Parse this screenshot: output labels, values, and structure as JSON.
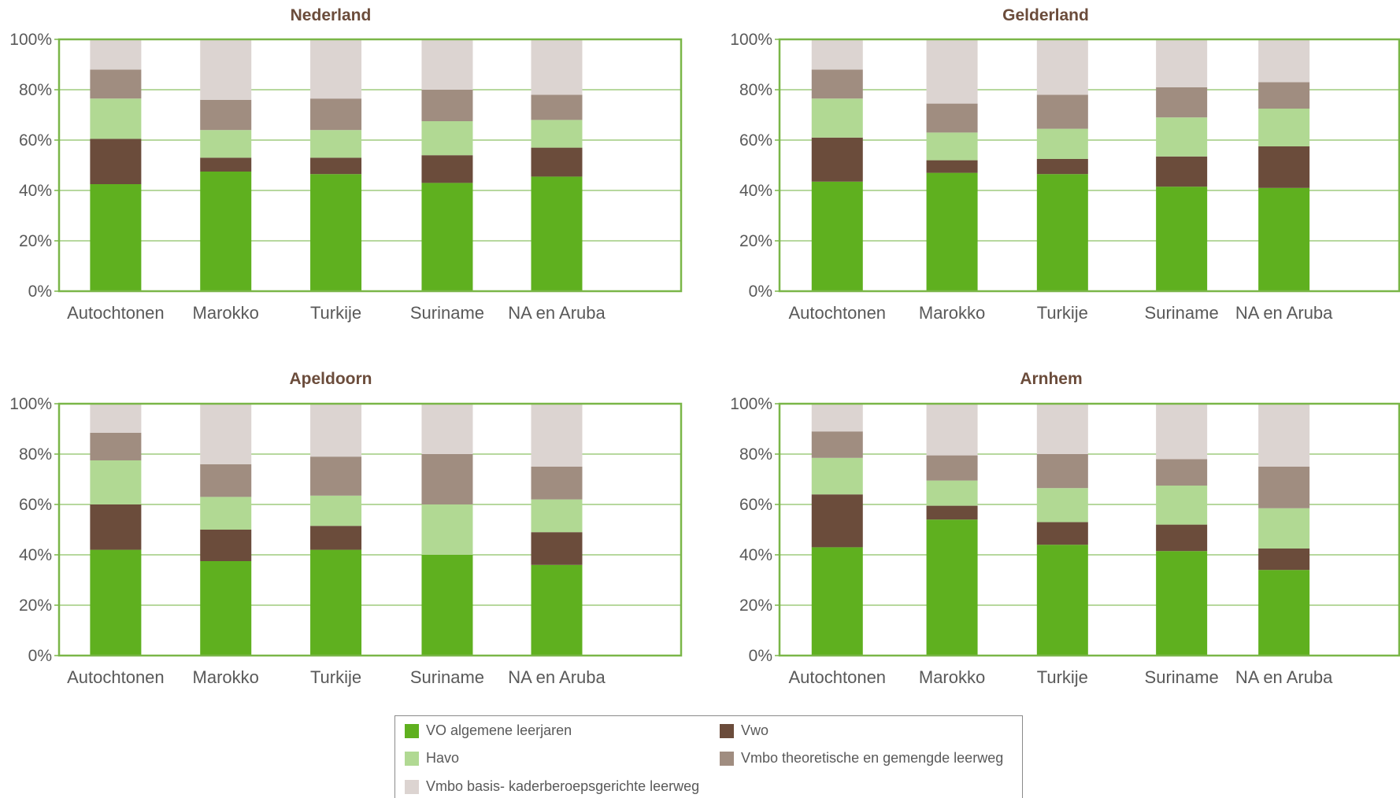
{
  "colors": {
    "vo": "#5fb01f",
    "vwo": "#6b4c3b",
    "havo": "#b1d993",
    "vmbo_tg": "#a08d80",
    "vmbo_bk": "#dcd4d1",
    "axis": "#7ab648",
    "grid": "#8cc063",
    "title": "#6b4c3b",
    "label": "#595959"
  },
  "legend": {
    "items": [
      {
        "key": "vo",
        "label": "VO algemene leerjaren"
      },
      {
        "key": "vwo",
        "label": "Vwo"
      },
      {
        "key": "havo",
        "label": "Havo"
      },
      {
        "key": "vmbo_tg",
        "label": "Vmbo theoretische en gemengde leerweg"
      },
      {
        "key": "vmbo_bk",
        "label": "Vmbo basis- kaderberoepsgerichte leerweg"
      }
    ]
  },
  "chart_data": [
    {
      "type": "bar",
      "stacked": true,
      "title": "Nederland",
      "categories": [
        "Autochtonen",
        "Marokko",
        "Turkije",
        "Suriname",
        "NA en Aruba"
      ],
      "yticks": [
        "0%",
        "20%",
        "40%",
        "60%",
        "80%",
        "100%"
      ],
      "ylim": [
        0,
        100
      ],
      "grid": true,
      "series": [
        {
          "name": "VO algemene leerjaren",
          "key": "vo",
          "values": [
            42.5,
            47.5,
            46.5,
            43,
            45.5
          ]
        },
        {
          "name": "Vwo",
          "key": "vwo",
          "values": [
            18,
            5.5,
            6.5,
            11,
            11.5
          ]
        },
        {
          "name": "Havo",
          "key": "havo",
          "values": [
            16,
            11,
            11,
            13.5,
            11
          ]
        },
        {
          "name": "Vmbo theoretische en gemengde leerweg",
          "key": "vmbo_tg",
          "values": [
            11.5,
            12,
            12.5,
            12.5,
            10
          ]
        },
        {
          "name": "Vmbo basis- kaderberoepsgerichte leerweg",
          "key": "vmbo_bk",
          "values": [
            12,
            24,
            23.5,
            20,
            22
          ]
        }
      ]
    },
    {
      "type": "bar",
      "stacked": true,
      "title": "Gelderland",
      "categories": [
        "Autochtonen",
        "Marokko",
        "Turkije",
        "Suriname",
        "NA en Aruba"
      ],
      "yticks": [
        "0%",
        "20%",
        "40%",
        "60%",
        "80%",
        "100%"
      ],
      "ylim": [
        0,
        100
      ],
      "grid": true,
      "series": [
        {
          "name": "VO algemene leerjaren",
          "key": "vo",
          "values": [
            43.5,
            47,
            46.5,
            41.5,
            41
          ]
        },
        {
          "name": "Vwo",
          "key": "vwo",
          "values": [
            17.5,
            5,
            6,
            12,
            16.5
          ]
        },
        {
          "name": "Havo",
          "key": "havo",
          "values": [
            15.5,
            11,
            12,
            15.5,
            15
          ]
        },
        {
          "name": "Vmbo theoretische en gemengde leerweg",
          "key": "vmbo_tg",
          "values": [
            11.5,
            11.5,
            13.5,
            12,
            10.5
          ]
        },
        {
          "name": "Vmbo basis- kaderberoepsgerichte leerweg",
          "key": "vmbo_bk",
          "values": [
            12,
            25.5,
            22,
            19,
            17
          ]
        }
      ]
    },
    {
      "type": "bar",
      "stacked": true,
      "title": "Apeldoorn",
      "categories": [
        "Autochtonen",
        "Marokko",
        "Turkije",
        "Suriname",
        "NA en Aruba"
      ],
      "yticks": [
        "0%",
        "20%",
        "40%",
        "60%",
        "80%",
        "100%"
      ],
      "ylim": [
        0,
        100
      ],
      "grid": true,
      "series": [
        {
          "name": "VO algemene leerjaren",
          "key": "vo",
          "values": [
            42,
            37.5,
            42,
            40,
            36
          ]
        },
        {
          "name": "Vwo",
          "key": "vwo",
          "values": [
            18,
            12.5,
            9.5,
            0,
            13
          ]
        },
        {
          "name": "Havo",
          "key": "havo",
          "values": [
            17.5,
            13,
            12,
            20,
            13
          ]
        },
        {
          "name": "Vmbo theoretische en gemengde leerweg",
          "key": "vmbo_tg",
          "values": [
            11,
            13,
            15.5,
            20,
            13
          ]
        },
        {
          "name": "Vmbo basis- kaderberoepsgerichte leerweg",
          "key": "vmbo_bk",
          "values": [
            11.5,
            24,
            21,
            20,
            25
          ]
        }
      ]
    },
    {
      "type": "bar",
      "stacked": true,
      "title": "Arnhem",
      "categories": [
        "Autochtonen",
        "Marokko",
        "Turkije",
        "Suriname",
        "NA en Aruba"
      ],
      "yticks": [
        "0%",
        "20%",
        "40%",
        "60%",
        "80%",
        "100%"
      ],
      "ylim": [
        0,
        100
      ],
      "grid": true,
      "series": [
        {
          "name": "VO algemene leerjaren",
          "key": "vo",
          "values": [
            43,
            54,
            44,
            41.5,
            34
          ]
        },
        {
          "name": "Vwo",
          "key": "vwo",
          "values": [
            21,
            5.5,
            9,
            10.5,
            8.5
          ]
        },
        {
          "name": "Havo",
          "key": "havo",
          "values": [
            14.5,
            10,
            13.5,
            15.5,
            16
          ]
        },
        {
          "name": "Vmbo theoretische en gemengde leerweg",
          "key": "vmbo_tg",
          "values": [
            10.5,
            10,
            13.5,
            10.5,
            16.5
          ]
        },
        {
          "name": "Vmbo basis- kaderberoepsgerichte leerweg",
          "key": "vmbo_bk",
          "values": [
            11,
            20.5,
            20,
            22,
            25
          ]
        }
      ]
    }
  ]
}
